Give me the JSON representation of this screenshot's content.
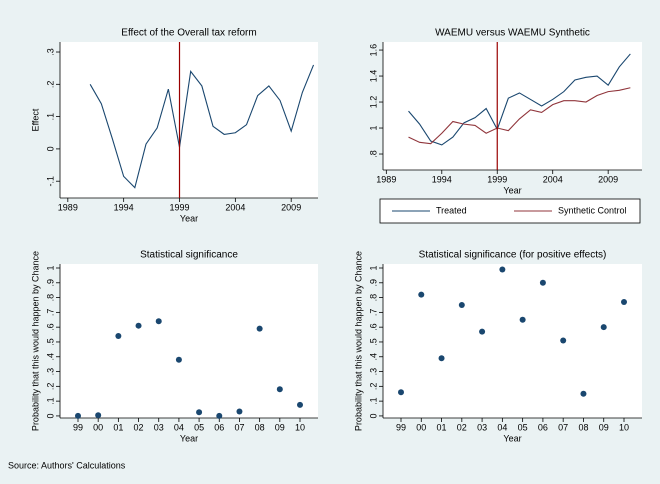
{
  "chart_data": [
    {
      "type": "line",
      "title": "Effect of the Overall tax reform",
      "x_label": "Year",
      "y_label": "Effect",
      "x": [
        1991,
        1992,
        1993,
        1994,
        1995,
        1996,
        1997,
        1998,
        1999,
        2000,
        2001,
        2002,
        2003,
        2004,
        2005,
        2006,
        2007,
        2008,
        2009,
        2010,
        2011
      ],
      "series": [
        {
          "name": null,
          "color": "#1a476f",
          "values": [
            0.2,
            0.14,
            0.03,
            -0.085,
            -0.12,
            0.015,
            0.065,
            0.185,
            0.005,
            0.24,
            0.195,
            0.07,
            0.045,
            0.05,
            0.075,
            0.165,
            0.195,
            0.15,
            0.055,
            0.175,
            0.26
          ]
        }
      ],
      "xline": 1999,
      "xline_color": "#990000",
      "xlim": [
        1988.3,
        2011.4
      ],
      "xticks": [
        1989,
        1994,
        1999,
        2004,
        2009
      ],
      "ylim": [
        -0.152,
        0.331
      ],
      "yticks": [
        {
          "value": -0.1,
          "label": "-.1"
        },
        0,
        {
          "value": 0.1,
          "label": ".1"
        },
        {
          "value": 0.2,
          "label": ".2"
        },
        {
          "value": 0.3,
          "label": ".3"
        }
      ]
    },
    {
      "type": "line",
      "title": "WAEMU versus WAEMU Synthetic",
      "x_label": "Year",
      "x": [
        1991,
        1992,
        1993,
        1994,
        1995,
        1996,
        1997,
        1998,
        1999,
        2000,
        2001,
        2002,
        2003,
        2004,
        2005,
        2006,
        2007,
        2008,
        2009,
        2010,
        2011
      ],
      "series": [
        {
          "name": "Treated",
          "color": "#1a476f",
          "values": [
            1.13,
            1.03,
            0.9,
            0.87,
            0.93,
            1.04,
            1.08,
            1.15,
            0.99,
            1.23,
            1.27,
            1.22,
            1.17,
            1.22,
            1.28,
            1.37,
            1.39,
            1.4,
            1.33,
            1.47,
            1.57
          ]
        },
        {
          "name": "Synthetic Control",
          "color": "#90353b",
          "values": [
            0.93,
            0.89,
            0.88,
            0.96,
            1.05,
            1.03,
            1.02,
            0.96,
            1.0,
            0.98,
            1.07,
            1.14,
            1.12,
            1.18,
            1.21,
            1.21,
            1.2,
            1.25,
            1.28,
            1.29,
            1.31
          ]
        }
      ],
      "xline": 1999,
      "xline_color": "#990000",
      "xlim": [
        1988.7,
        2012.05
      ],
      "xticks": [
        1989,
        1994,
        1999,
        2004,
        2009
      ],
      "ylim": [
        0.677,
        1.662
      ],
      "yticks": [
        {
          "value": 0.8,
          "label": ".8"
        },
        1,
        1.2,
        1.4,
        1.6
      ]
    },
    {
      "type": "scatter",
      "title": "Statistical significance",
      "x_label": "Year",
      "y_label": "Probability that this would happen by Chance",
      "categories": [
        "99",
        "00",
        "01",
        "02",
        "03",
        "04",
        "05",
        "06",
        "07",
        "08",
        "09",
        "10"
      ],
      "color": "#1a476f",
      "values": [
        0,
        0.005,
        0.54,
        0.61,
        0.64,
        0.38,
        0.025,
        0,
        0.03,
        0.59,
        0.18,
        0.075
      ],
      "ylim": [
        -0.014,
        1.027
      ],
      "yticks": [
        0,
        {
          "value": 0.1,
          "label": ".1"
        },
        {
          "value": 0.2,
          "label": ".2"
        },
        {
          "value": 0.3,
          "label": ".3"
        },
        {
          "value": 0.4,
          "label": ".4"
        },
        {
          "value": 0.5,
          "label": ".5"
        },
        {
          "value": 0.6,
          "label": ".6"
        },
        {
          "value": 0.7,
          "label": ".7"
        },
        {
          "value": 0.8,
          "label": ".8"
        },
        {
          "value": 0.9,
          "label": ".9"
        },
        1
      ]
    },
    {
      "type": "scatter",
      "title": "Statistical significance (for positive effects)",
      "x_label": "Year",
      "y_label": "Probability that this would happen by Chance",
      "categories": [
        "99",
        "00",
        "01",
        "02",
        "03",
        "04",
        "05",
        "06",
        "07",
        "08",
        "09",
        "10"
      ],
      "color": "#1a476f",
      "values": [
        0.16,
        0.82,
        0.39,
        0.75,
        0.57,
        0.99,
        0.65,
        0.9,
        0.51,
        0.15,
        0.6,
        0.77
      ],
      "ylim": [
        -0.014,
        1.027
      ],
      "yticks": [
        0,
        {
          "value": 0.1,
          "label": ".1"
        },
        {
          "value": 0.2,
          "label": ".2"
        },
        {
          "value": 0.3,
          "label": ".3"
        },
        {
          "value": 0.4,
          "label": ".4"
        },
        {
          "value": 0.5,
          "label": ".5"
        },
        {
          "value": 0.6,
          "label": ".6"
        },
        {
          "value": 0.7,
          "label": ".7"
        },
        {
          "value": 0.8,
          "label": ".8"
        },
        {
          "value": 0.9,
          "label": ".9"
        },
        1
      ]
    }
  ],
  "source": "Source: Authors' Calculations"
}
